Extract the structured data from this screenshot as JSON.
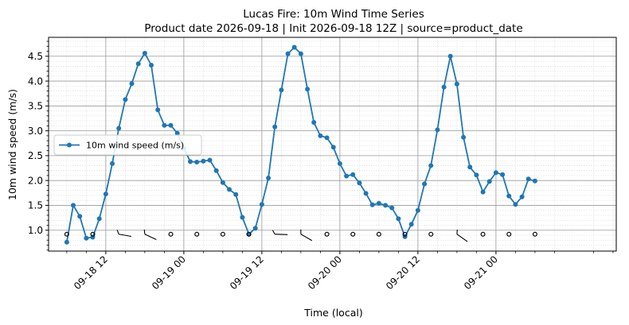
{
  "chart_data": {
    "type": "line",
    "title": "Lucas Fire: 10m Wind Time Series",
    "subtitle": "Product date 2026-09-18 | Init 2026-09-18 12Z | source=product_date",
    "xlabel": "Time (local)",
    "ylabel": "10m wind speed (m/s)",
    "x_unit": "hours since 2026-09-18 00:00 local",
    "xlim": [
      3.2,
      90.5
    ],
    "ylim": [
      0.58,
      4.88
    ],
    "x_ticks": [
      {
        "h": 12,
        "label": "09-18 12"
      },
      {
        "h": 24,
        "label": "09-19 00"
      },
      {
        "h": 36,
        "label": "09-19 12"
      },
      {
        "h": 48,
        "label": "09-20 00"
      },
      {
        "h": 60,
        "label": "09-20 12"
      },
      {
        "h": 72,
        "label": "09-21 00"
      }
    ],
    "y_ticks": [
      1.0,
      1.5,
      2.0,
      2.5,
      3.0,
      3.5,
      4.0,
      4.5
    ],
    "y_tick_labels": [
      "1.0",
      "1.5",
      "2.0",
      "2.5",
      "3.0",
      "3.5",
      "4.0",
      "4.5"
    ],
    "grid": true,
    "legend_position": "center-left",
    "series": [
      {
        "name": "10m wind speed (m/s)",
        "color": "#1f77b4",
        "values": [
          [
            6,
            0.76
          ],
          [
            7,
            1.5
          ],
          [
            8,
            1.28
          ],
          [
            9,
            0.84
          ],
          [
            10,
            0.86
          ],
          [
            11,
            1.23
          ],
          [
            12,
            1.73
          ],
          [
            13,
            2.34
          ],
          [
            14,
            3.05
          ],
          [
            15,
            3.63
          ],
          [
            16,
            3.95
          ],
          [
            17,
            4.35
          ],
          [
            18,
            4.56
          ],
          [
            19,
            4.32
          ],
          [
            20,
            3.42
          ],
          [
            21,
            3.11
          ],
          [
            22,
            3.11
          ],
          [
            23,
            2.95
          ],
          [
            24,
            2.65
          ],
          [
            25,
            2.38
          ],
          [
            26,
            2.37
          ],
          [
            27,
            2.39
          ],
          [
            28,
            2.41
          ],
          [
            29,
            2.2
          ],
          [
            30,
            1.96
          ],
          [
            31,
            1.82
          ],
          [
            32,
            1.72
          ],
          [
            33,
            1.26
          ],
          [
            34,
            0.92
          ],
          [
            35,
            1.04
          ],
          [
            36,
            1.52
          ],
          [
            37,
            2.05
          ],
          [
            38,
            3.08
          ],
          [
            39,
            3.82
          ],
          [
            40,
            4.55
          ],
          [
            41,
            4.68
          ],
          [
            42,
            4.55
          ],
          [
            43,
            3.84
          ],
          [
            44,
            3.17
          ],
          [
            45,
            2.9
          ],
          [
            46,
            2.86
          ],
          [
            47,
            2.67
          ],
          [
            48,
            2.34
          ],
          [
            49,
            2.09
          ],
          [
            50,
            2.12
          ],
          [
            51,
            1.95
          ],
          [
            52,
            1.74
          ],
          [
            53,
            1.51
          ],
          [
            54,
            1.54
          ],
          [
            55,
            1.5
          ],
          [
            56,
            1.45
          ],
          [
            57,
            1.23
          ],
          [
            58,
            0.87
          ],
          [
            59,
            1.12
          ],
          [
            60,
            1.4
          ],
          [
            61,
            1.93
          ],
          [
            62,
            2.3
          ],
          [
            63,
            3.02
          ],
          [
            64,
            3.88
          ],
          [
            65,
            4.5
          ],
          [
            66,
            3.94
          ],
          [
            67,
            2.87
          ],
          [
            68,
            2.27
          ],
          [
            69,
            2.11
          ],
          [
            70,
            1.77
          ],
          [
            71,
            1.98
          ],
          [
            72,
            2.16
          ],
          [
            73,
            2.12
          ],
          [
            74,
            1.69
          ],
          [
            75,
            1.52
          ],
          [
            76,
            1.67
          ],
          [
            77,
            2.03
          ],
          [
            78,
            1.99
          ]
        ]
      }
    ],
    "wind_barbs": {
      "y_level": 0.92,
      "marks": [
        {
          "h": 6,
          "kind": "calm"
        },
        {
          "h": 10,
          "kind": "calm"
        },
        {
          "h": 14,
          "kind": "barb",
          "dir_deg": 280
        },
        {
          "h": 18,
          "kind": "barb",
          "dir_deg": 295
        },
        {
          "h": 22,
          "kind": "calm"
        },
        {
          "h": 26,
          "kind": "calm"
        },
        {
          "h": 30,
          "kind": "calm"
        },
        {
          "h": 34,
          "kind": "calm"
        },
        {
          "h": 38,
          "kind": "barb",
          "dir_deg": 272
        },
        {
          "h": 42,
          "kind": "barb",
          "dir_deg": 300
        },
        {
          "h": 46,
          "kind": "calm"
        },
        {
          "h": 50,
          "kind": "calm"
        },
        {
          "h": 54,
          "kind": "calm"
        },
        {
          "h": 58,
          "kind": "calm"
        },
        {
          "h": 62,
          "kind": "calm"
        },
        {
          "h": 66,
          "kind": "barb",
          "dir_deg": 305
        },
        {
          "h": 70,
          "kind": "calm"
        },
        {
          "h": 74,
          "kind": "calm"
        },
        {
          "h": 78,
          "kind": "calm"
        }
      ]
    }
  }
}
